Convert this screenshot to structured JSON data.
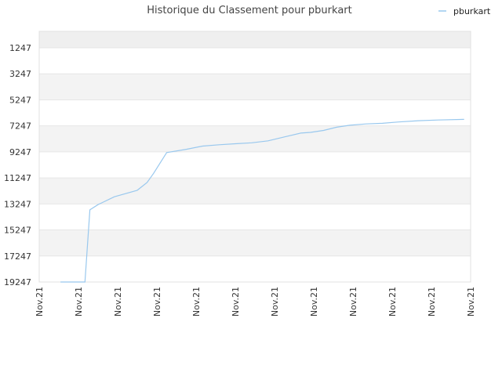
{
  "chart_data": {
    "type": "line",
    "title": "Historique du Classement pour pburkart",
    "xlabel": "",
    "ylabel": "",
    "y_inverted": true,
    "ylim": [
      19247,
      0
    ],
    "y_ticks": [
      "1247",
      "3247",
      "5247",
      "7247",
      "9247",
      "11247",
      "13247",
      "15247",
      "17247",
      "19247"
    ],
    "x_ticks": [
      "Nov.21",
      "Nov.21",
      "Nov.21",
      "Nov.21",
      "Nov.21",
      "Nov.21",
      "Nov.21",
      "Nov.21",
      "Nov.21",
      "Nov.21",
      "Nov.21",
      "Nov.21"
    ],
    "grid": true,
    "legend_position": "top-right",
    "series": [
      {
        "name": "pburkart",
        "color": "#99c8ee",
        "x": [
          6.5,
          14,
          15.5,
          18,
          23,
          30,
          33,
          35,
          39,
          45,
          50,
          55,
          60,
          65,
          70,
          75,
          80,
          83,
          87,
          91,
          95,
          100,
          105,
          110,
          116,
          122,
          130
        ],
        "y": [
          19247,
          19247,
          13700,
          13300,
          12700,
          12200,
          11600,
          10900,
          9300,
          9050,
          8800,
          8700,
          8620,
          8550,
          8400,
          8100,
          7800,
          7750,
          7600,
          7350,
          7200,
          7100,
          7050,
          6950,
          6850,
          6800,
          6750
        ]
      }
    ]
  }
}
